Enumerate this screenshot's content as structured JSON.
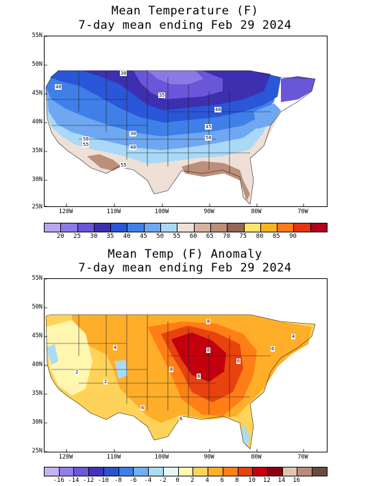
{
  "panel1": {
    "title_line1": "Mean Temperature (F)",
    "title_line2": "7-day mean ending Feb 29 2024",
    "lat_labels": [
      "55N",
      "50N",
      "45N",
      "40N",
      "35N",
      "30N",
      "25N"
    ],
    "lon_labels": [
      "120W",
      "110W",
      "100W",
      "90W",
      "80W",
      "70W"
    ],
    "contour_labels": [
      "30",
      "40",
      "35",
      "40",
      "45",
      "50",
      "50",
      "30",
      "40",
      "55",
      "55"
    ],
    "colorbar": {
      "colors": [
        "#b8a6f0",
        "#8d79e6",
        "#6a56d8",
        "#3c2fb0",
        "#2a56d8",
        "#3f7fe8",
        "#6fa7f0",
        "#a9d9f6",
        "#eee0d6",
        "#d6b2a0",
        "#bb8f7a",
        "#946657",
        "#ffe36a",
        "#ffb31f",
        "#ff7a1a",
        "#e63312",
        "#b2001e"
      ],
      "labels": [
        "20",
        "25",
        "30",
        "35",
        "40",
        "45",
        "50",
        "55",
        "60",
        "65",
        "70",
        "75",
        "80",
        "85",
        "90"
      ]
    }
  },
  "panel2": {
    "title_line1": "Mean Temp (F) Anomaly",
    "title_line2": "7-day mean ending Feb 29 2024",
    "lat_labels": [
      "55N",
      "50N",
      "45N",
      "40N",
      "35N",
      "30N",
      "25N"
    ],
    "lon_labels": [
      "120W",
      "110W",
      "100W",
      "90W",
      "80W",
      "70W"
    ],
    "contour_labels": [
      "8",
      "4",
      "2",
      "2",
      "8",
      "8",
      "8",
      "6",
      "6",
      "6",
      "6",
      "4"
    ],
    "colorbar": {
      "colors": [
        "#c5b4f5",
        "#8f7fea",
        "#6b58db",
        "#4034c0",
        "#2954cf",
        "#3f7fe8",
        "#6fb0f2",
        "#a9dcf6",
        "#e7f7f6",
        "#fff6b0",
        "#ffd35a",
        "#ffae2a",
        "#ff7f16",
        "#e8420e",
        "#c4000e",
        "#8a0010",
        "#e3c4b4",
        "#b78c7c",
        "#6a4b3e"
      ],
      "labels": [
        "-16",
        "-14",
        "-12",
        "-10",
        "-8",
        "-6",
        "-4",
        "-2",
        "0",
        "2",
        "4",
        "6",
        "8",
        "10",
        "12",
        "14",
        "16"
      ]
    }
  }
}
